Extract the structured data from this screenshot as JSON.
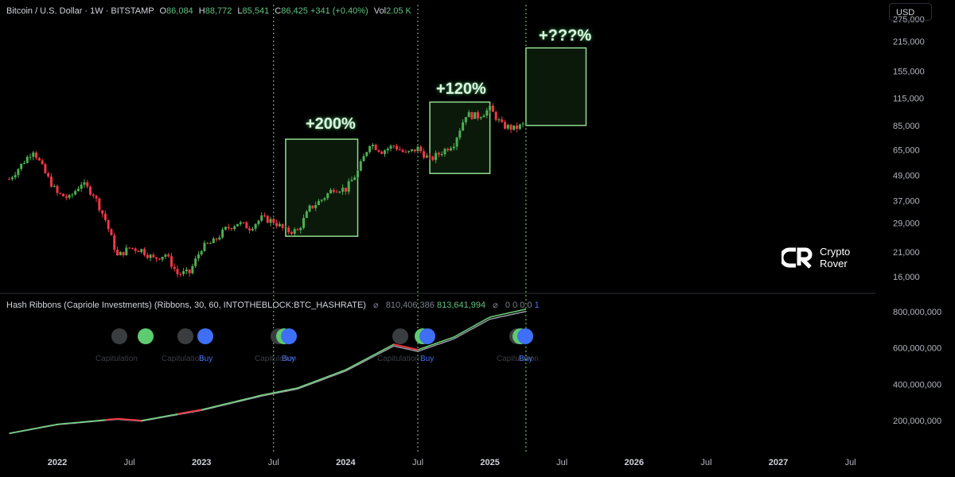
{
  "header": {
    "symbol": "Bitcoin / U.S. Dollar · 1W · BITSTAMP",
    "o_label": "O",
    "o_value": "86,084",
    "h_label": "H",
    "h_value": "88,772",
    "l_label": "L",
    "l_value": "85,541",
    "c_label": "C",
    "c_value": "86,425",
    "change": "+341 (+0.40%)",
    "vol_label": "Vol",
    "vol_value": "2.05 K"
  },
  "currency_button": "USD",
  "indicator": {
    "label": "Hash Ribbons (Capriole Investments) (Ribbons, 30, 60, INTOTHEBLOCK:BTC_HASHRATE)",
    "symbol": "⌀",
    "value_1": "810,406,386",
    "value_2": "813,641,994",
    "symbol_2": "⌀",
    "zeros": "0  0  0  0",
    "last": "1"
  },
  "annotations": [
    "+200%",
    "+120%",
    "+???%"
  ],
  "logo": {
    "line1": "Crypto",
    "line2": "Rover"
  },
  "signals": [
    {
      "label": "Capitulation",
      "buy": ""
    },
    {
      "label": "Capitulation",
      "buy": "Buy"
    },
    {
      "label": "Capitulation",
      "buy": "Buy"
    },
    {
      "label": "Capitulation",
      "buy": "Buy"
    },
    {
      "label": "Capitulation",
      "buy": "Buy"
    }
  ],
  "colors": {
    "up": "#4caf50",
    "down": "#f23645",
    "box": "#8fdc8f",
    "blue": "#3e6ff6",
    "vline": "#7cd67c"
  },
  "chart_data": [
    {
      "type": "line",
      "title": "Bitcoin / U.S. Dollar · 1W · BITSTAMP",
      "scale": "log",
      "yticks": [
        16000,
        21000,
        29000,
        37000,
        49000,
        65000,
        85000,
        115000,
        155000,
        215000,
        275000
      ],
      "ytick_labels": [
        "16,000",
        "21,000",
        "29,000",
        "37,000",
        "49,000",
        "65,000",
        "85,000",
        "115,000",
        "155,000",
        "215,000",
        "275,000"
      ],
      "x_labels": [
        "2022",
        "Jul",
        "2023",
        "Jul",
        "2024",
        "Jul",
        "2025",
        "Jul",
        "2026",
        "Jul",
        "2027",
        "Jul"
      ],
      "x_label_dates": [
        "2022-01",
        "2022-07",
        "2023-01",
        "2023-07",
        "2024-01",
        "2024-07",
        "2025-01",
        "2025-07",
        "2026-01",
        "2026-07",
        "2027-01",
        "2027-07"
      ],
      "price_path": [
        [
          "2021-09",
          47000
        ],
        [
          "2021-10",
          55000
        ],
        [
          "2021-11",
          65000
        ],
        [
          "2021-12",
          50000
        ],
        [
          "2022-01",
          40000
        ],
        [
          "2022-02",
          38000
        ],
        [
          "2022-03",
          45000
        ],
        [
          "2022-04",
          40000
        ],
        [
          "2022-05",
          30000
        ],
        [
          "2022-06",
          20000
        ],
        [
          "2022-07",
          22000
        ],
        [
          "2022-08",
          21500
        ],
        [
          "2022-09",
          19500
        ],
        [
          "2022-10",
          20500
        ],
        [
          "2022-11",
          16500
        ],
        [
          "2022-12",
          16700
        ],
        [
          "2023-01",
          22000
        ],
        [
          "2023-02",
          23500
        ],
        [
          "2023-03",
          27000
        ],
        [
          "2023-04",
          29000
        ],
        [
          "2023-05",
          27500
        ],
        [
          "2023-06",
          30500
        ],
        [
          "2023-07",
          29500
        ],
        [
          "2023-08",
          26500
        ],
        [
          "2023-09",
          26500
        ],
        [
          "2023-10",
          34000
        ],
        [
          "2023-11",
          37500
        ],
        [
          "2023-12",
          42500
        ],
        [
          "2024-01",
          42000
        ],
        [
          "2024-02",
          51000
        ],
        [
          "2024-03",
          70000
        ],
        [
          "2024-04",
          64000
        ],
        [
          "2024-05",
          68000
        ],
        [
          "2024-06",
          62000
        ],
        [
          "2024-07",
          66000
        ],
        [
          "2024-08",
          58000
        ],
        [
          "2024-09",
          63500
        ],
        [
          "2024-10",
          70000
        ],
        [
          "2024-11",
          96000
        ],
        [
          "2024-12",
          94000
        ],
        [
          "2025-01",
          102000
        ],
        [
          "2025-02",
          85000
        ],
        [
          "2025-03",
          82000
        ],
        [
          "2025-04",
          86425
        ]
      ],
      "zones": [
        {
          "label": "+200%",
          "start": "2023-08",
          "end": "2024-02",
          "low": 25000,
          "high": 73000
        },
        {
          "label": "+120%",
          "start": "2024-08",
          "end": "2025-01",
          "low": 50000,
          "high": 110000
        },
        {
          "label": "+???%",
          "start": "2025-04",
          "end": "2025-09",
          "low": 85000,
          "high": 200000
        }
      ],
      "vlines": [
        "2023-07",
        "2024-07",
        "2025-04"
      ]
    },
    {
      "type": "line",
      "title": "Hash Ribbons (Capriole Investments) (Ribbons, 30, 60, INTOTHEBLOCK:BTC_HASHRATE)",
      "yticks": [
        200000000,
        400000000,
        600000000,
        800000000
      ],
      "ytick_labels": [
        "200,000,000",
        "400,000,000",
        "600,000,000",
        "800,000,000"
      ],
      "series": [
        {
          "name": "",
          "values": [
            [
              "2021-09",
              130000000
            ],
            [
              "2022-01",
              180000000
            ],
            [
              "2022-06",
              210000000
            ],
            [
              "2022-08",
              200000000
            ],
            [
              "2023-01",
              260000000
            ],
            [
              "2023-06",
              340000000
            ],
            [
              "2023-09",
              380000000
            ],
            [
              "2024-01",
              480000000
            ],
            [
              "2024-05",
              620000000
            ],
            [
              "2024-07",
              590000000
            ],
            [
              "2024-10",
              660000000
            ],
            [
              "2025-01",
              770000000
            ],
            [
              "2025-04",
              813641994
            ]
          ]
        }
      ]
    }
  ]
}
